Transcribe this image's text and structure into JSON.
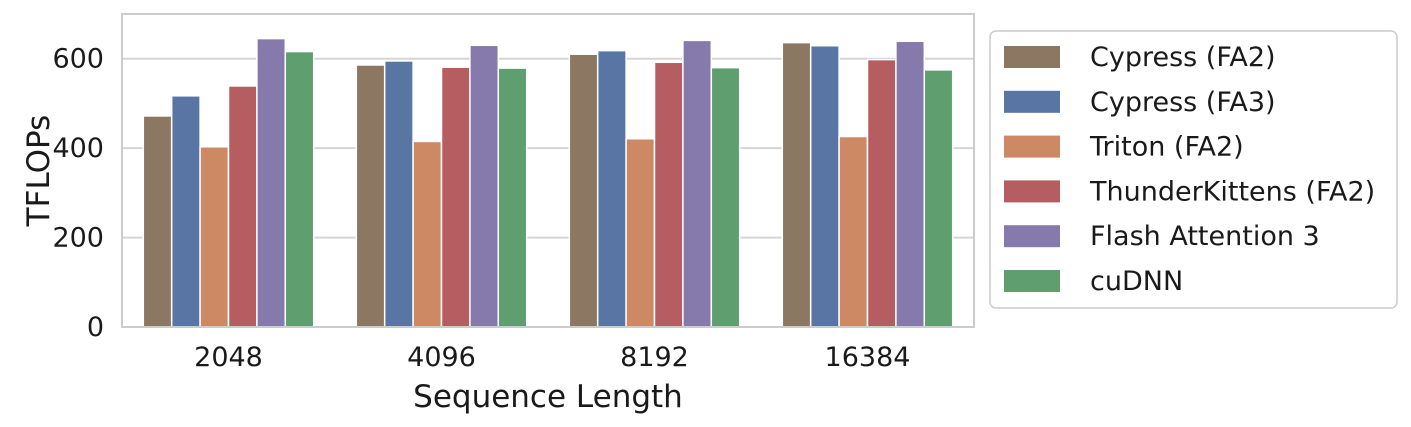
{
  "chart_data": {
    "type": "bar",
    "categories": [
      "2048",
      "4096",
      "8192",
      "16384"
    ],
    "xlabel": "Sequence Length",
    "ylabel": "TFLOPs",
    "ylim": [
      0,
      700
    ],
    "yticks": [
      0,
      200,
      400,
      600
    ],
    "grid": "horizontal",
    "legend": "right, outside plot",
    "series": [
      {
        "name": "Cypress (FA2)",
        "color": "#8c7862",
        "values": [
          472,
          586,
          610,
          636
        ]
      },
      {
        "name": "Cypress (FA3)",
        "color": "#5875a4",
        "values": [
          517,
          595,
          618,
          629
        ]
      },
      {
        "name": "Triton (FA2)",
        "color": "#cc8963",
        "values": [
          403,
          415,
          421,
          426
        ]
      },
      {
        "name": "ThunderKittens (FA2)",
        "color": "#b55d60",
        "values": [
          539,
          581,
          592,
          598
        ]
      },
      {
        "name": "Flash Attention 3",
        "color": "#857aab",
        "values": [
          645,
          630,
          641,
          639
        ]
      },
      {
        "name": "cuDNN",
        "color": "#5f9e6e",
        "values": [
          616,
          579,
          580,
          575
        ]
      }
    ]
  }
}
